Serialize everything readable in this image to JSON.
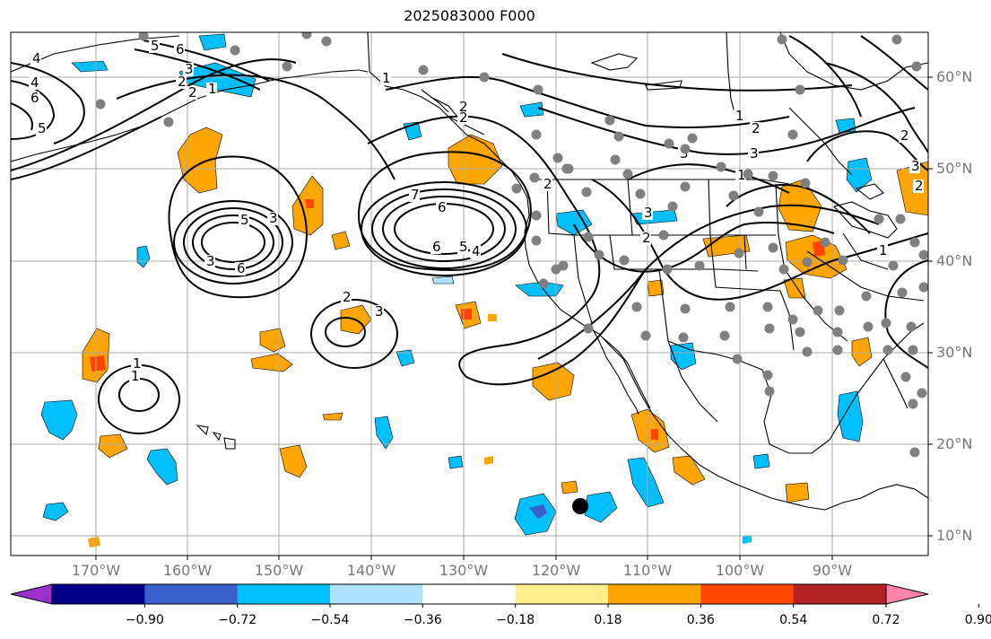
{
  "title": "2025083000 F000",
  "lat_labels": [
    "60°N",
    "50°N",
    "40°N",
    "30°N",
    "20°N",
    "10°N"
  ],
  "lon_labels": [
    "170°W",
    "160°W",
    "150°W",
    "140°W",
    "130°W",
    "120°W",
    "110°W",
    "100°W",
    "90°W"
  ],
  "colorbar": {
    "tick_labels": [
      "−0.90",
      "−0.72",
      "−0.54",
      "−0.36",
      "−0.18",
      "0.18",
      "0.36",
      "0.54",
      "0.72",
      "0.90"
    ],
    "colors": [
      "#9932cc",
      "#00008b",
      "#3a5fcd",
      "#00bfff",
      "#b0e2ff",
      "#ffffff",
      "#ffec8b",
      "#ffa500",
      "#ff4500",
      "#b22222",
      "#ff82ab"
    ]
  },
  "contour_labels": [
    "4",
    "4",
    "6",
    "5",
    "5",
    "6",
    "3",
    "2",
    "1",
    "2",
    "3",
    "5",
    "6",
    "3",
    "6",
    "7",
    "6",
    "5",
    "4",
    "3",
    "2",
    "1",
    "1",
    "2",
    "2",
    "1",
    "2",
    "3",
    "3",
    "1",
    "2",
    "3",
    "1",
    "2",
    "3",
    "2",
    "2",
    "1"
  ],
  "map_colors": {
    "land_outline": "#000000",
    "grid": "#aaaaaa",
    "contour": "#000000",
    "station_dot": "#808080",
    "marker": "#000000"
  }
}
